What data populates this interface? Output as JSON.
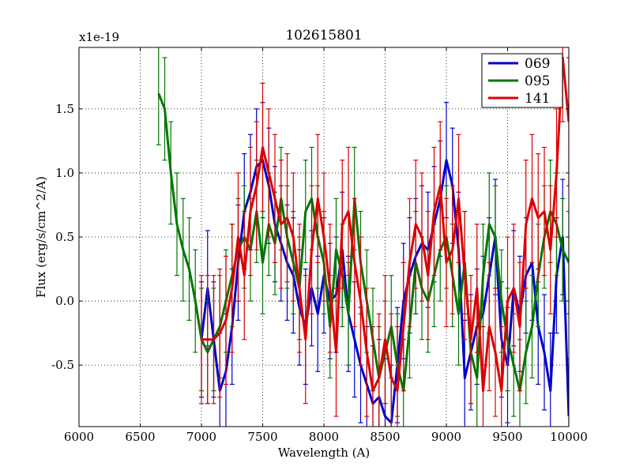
{
  "chart_data": {
    "type": "line",
    "title": "102615801",
    "xlabel": "Wavelength (A)",
    "ylabel": "Flux (erg/s/cm^2/A)",
    "offset_text": "x1e-19",
    "xlim": [
      6000,
      10000
    ],
    "ylim": [
      -0.98,
      1.98
    ],
    "xticks": [
      6000,
      6500,
      7000,
      7500,
      8000,
      8500,
      9000,
      9500,
      10000
    ],
    "xtick_labels": [
      "6000",
      "6500",
      "7000",
      "7500",
      "8000",
      "8500",
      "9000",
      "9500",
      "10000"
    ],
    "yticks": [
      -0.5,
      0.0,
      0.5,
      1.0,
      1.5
    ],
    "ytick_labels": [
      "-0.5",
      "0.0",
      "0.5",
      "1.0",
      "1.5"
    ],
    "grid": true,
    "legend_position": "top-right",
    "series": [
      {
        "name": "069",
        "color": "#0000cc",
        "x": [
          7000,
          7050,
          7100,
          7150,
          7200,
          7250,
          7300,
          7350,
          7400,
          7450,
          7500,
          7550,
          7600,
          7650,
          7700,
          7750,
          7800,
          7850,
          7900,
          7950,
          8000,
          8050,
          8100,
          8150,
          8200,
          8250,
          8300,
          8350,
          8400,
          8450,
          8500,
          8550,
          8600,
          8650,
          8700,
          8750,
          8800,
          8850,
          8900,
          8950,
          9000,
          9050,
          9100,
          9150,
          9200,
          9250,
          9300,
          9350,
          9400,
          9450,
          9500,
          9550,
          9600,
          9650,
          9700,
          9750,
          9800,
          9850,
          9900,
          9950,
          10000
        ],
        "y": [
          -0.3,
          0.1,
          -0.3,
          -0.7,
          -0.55,
          -0.2,
          0.3,
          0.7,
          0.85,
          1.05,
          1.1,
          0.9,
          0.6,
          0.45,
          0.3,
          0.2,
          -0.05,
          -0.2,
          0.1,
          -0.1,
          0.2,
          0.0,
          0.05,
          0.4,
          -0.1,
          -0.3,
          -0.5,
          -0.65,
          -0.8,
          -0.75,
          -0.9,
          -0.95,
          -0.5,
          0.0,
          0.2,
          0.35,
          0.45,
          0.4,
          0.6,
          0.8,
          1.1,
          0.9,
          0.4,
          -0.6,
          -0.4,
          -0.2,
          -0.1,
          0.2,
          0.5,
          -0.3,
          -0.5,
          0.1,
          -0.1,
          0.2,
          0.3,
          -0.2,
          -0.4,
          -0.7,
          0.2,
          0.5,
          -0.9
        ],
        "errors": [
          0.45,
          0.45,
          0.45,
          0.45,
          0.45,
          0.45,
          0.45,
          0.45,
          0.45,
          0.45,
          0.45,
          0.45,
          0.45,
          0.45,
          0.45,
          0.45,
          0.45,
          0.45,
          0.45,
          0.45,
          0.45,
          0.45,
          0.45,
          0.45,
          0.45,
          0.45,
          0.45,
          0.45,
          0.45,
          0.45,
          0.45,
          0.45,
          0.45,
          0.45,
          0.45,
          0.45,
          0.45,
          0.45,
          0.45,
          0.45,
          0.45,
          0.45,
          0.45,
          0.45,
          0.45,
          0.45,
          0.45,
          0.45,
          0.45,
          0.45,
          0.45,
          0.45,
          0.45,
          0.45,
          0.45,
          0.45,
          0.45,
          0.45,
          0.45,
          0.45,
          0.45
        ]
      },
      {
        "name": "095",
        "color": "#007700",
        "x": [
          6650,
          6700,
          6750,
          6800,
          6850,
          6900,
          6950,
          7000,
          7050,
          7100,
          7150,
          7200,
          7250,
          7300,
          7350,
          7400,
          7450,
          7500,
          7550,
          7600,
          7650,
          7700,
          7750,
          7800,
          7850,
          7900,
          7950,
          8000,
          8050,
          8100,
          8150,
          8200,
          8250,
          8300,
          8350,
          8400,
          8450,
          8500,
          8550,
          8600,
          8650,
          8700,
          8750,
          8800,
          8850,
          8900,
          8950,
          9000,
          9050,
          9100,
          9150,
          9200,
          9250,
          9300,
          9350,
          9400,
          9450,
          9500,
          9550,
          9600,
          9650,
          9700,
          9750,
          9800,
          9850,
          9900,
          9950,
          10000
        ],
        "y": [
          1.62,
          1.5,
          1.0,
          0.6,
          0.4,
          0.25,
          0.0,
          -0.3,
          -0.4,
          -0.3,
          -0.2,
          0.0,
          0.2,
          0.4,
          0.5,
          0.4,
          0.7,
          0.3,
          0.6,
          0.45,
          0.8,
          0.5,
          0.3,
          0.1,
          0.7,
          0.8,
          0.5,
          0.3,
          -0.2,
          0.4,
          0.2,
          -0.1,
          0.8,
          0.3,
          0.0,
          -0.3,
          -0.6,
          -0.4,
          -0.2,
          -0.5,
          -0.7,
          -0.2,
          0.3,
          0.1,
          0.0,
          0.2,
          0.4,
          0.5,
          0.2,
          -0.1,
          0.3,
          -0.4,
          -0.6,
          0.2,
          0.6,
          0.5,
          0.0,
          -0.3,
          -0.5,
          -0.7,
          -0.4,
          -0.2,
          0.2,
          0.5,
          0.7,
          0.6,
          0.4,
          0.3
        ],
        "errors": [
          0.4,
          0.4,
          0.4,
          0.4,
          0.4,
          0.4,
          0.4,
          0.4,
          0.4,
          0.4,
          0.4,
          0.4,
          0.4,
          0.4,
          0.4,
          0.4,
          0.4,
          0.4,
          0.4,
          0.4,
          0.4,
          0.4,
          0.4,
          0.4,
          0.4,
          0.4,
          0.4,
          0.4,
          0.4,
          0.4,
          0.4,
          0.4,
          0.4,
          0.4,
          0.4,
          0.4,
          0.4,
          0.4,
          0.4,
          0.4,
          0.4,
          0.4,
          0.4,
          0.4,
          0.4,
          0.4,
          0.4,
          0.4,
          0.4,
          0.4,
          0.4,
          0.4,
          0.4,
          0.4,
          0.4,
          0.4,
          0.4,
          0.4,
          0.4,
          0.4,
          0.4,
          0.4,
          0.4,
          0.4,
          0.4,
          0.4,
          0.4,
          0.4
        ]
      },
      {
        "name": "141",
        "color": "#dd0000",
        "x": [
          7000,
          7050,
          7100,
          7150,
          7200,
          7250,
          7300,
          7350,
          7400,
          7450,
          7500,
          7550,
          7600,
          7650,
          7700,
          7750,
          7800,
          7850,
          7900,
          7950,
          8000,
          8050,
          8100,
          8150,
          8200,
          8250,
          8300,
          8350,
          8400,
          8450,
          8500,
          8550,
          8600,
          8650,
          8700,
          8750,
          8800,
          8850,
          8900,
          8950,
          9000,
          9050,
          9100,
          9150,
          9200,
          9250,
          9300,
          9350,
          9400,
          9450,
          9500,
          9550,
          9600,
          9650,
          9700,
          9750,
          9800,
          9850,
          9900,
          9950,
          10000
        ],
        "y": [
          -0.3,
          -0.3,
          -0.3,
          -0.25,
          -0.15,
          0.1,
          0.5,
          0.2,
          0.7,
          0.9,
          1.2,
          1.0,
          0.8,
          0.6,
          0.65,
          0.5,
          0.1,
          -0.3,
          0.4,
          0.8,
          0.5,
          0.1,
          -0.4,
          0.6,
          0.7,
          0.3,
          0.0,
          -0.4,
          -0.7,
          -0.6,
          -0.3,
          -0.6,
          -0.7,
          -0.2,
          0.3,
          0.6,
          0.5,
          0.2,
          0.7,
          0.9,
          0.3,
          0.4,
          0.8,
          0.2,
          -0.3,
          0.1,
          -0.7,
          -0.2,
          -0.4,
          -0.7,
          0.0,
          0.1,
          -0.2,
          0.6,
          0.8,
          0.65,
          0.7,
          0.4,
          1.0,
          1.9,
          1.4
        ],
        "errors": [
          0.5,
          0.5,
          0.5,
          0.5,
          0.5,
          0.5,
          0.5,
          0.5,
          0.5,
          0.5,
          0.5,
          0.5,
          0.5,
          0.5,
          0.5,
          0.5,
          0.5,
          0.5,
          0.5,
          0.5,
          0.5,
          0.5,
          0.5,
          0.5,
          0.5,
          0.5,
          0.5,
          0.5,
          0.5,
          0.5,
          0.5,
          0.5,
          0.5,
          0.5,
          0.5,
          0.5,
          0.5,
          0.5,
          0.5,
          0.5,
          0.5,
          0.5,
          0.5,
          0.5,
          0.5,
          0.5,
          0.5,
          0.5,
          0.5,
          0.5,
          0.5,
          0.5,
          0.5,
          0.5,
          0.5,
          0.5,
          0.5,
          0.5,
          0.5,
          0.5,
          0.5
        ]
      }
    ]
  }
}
